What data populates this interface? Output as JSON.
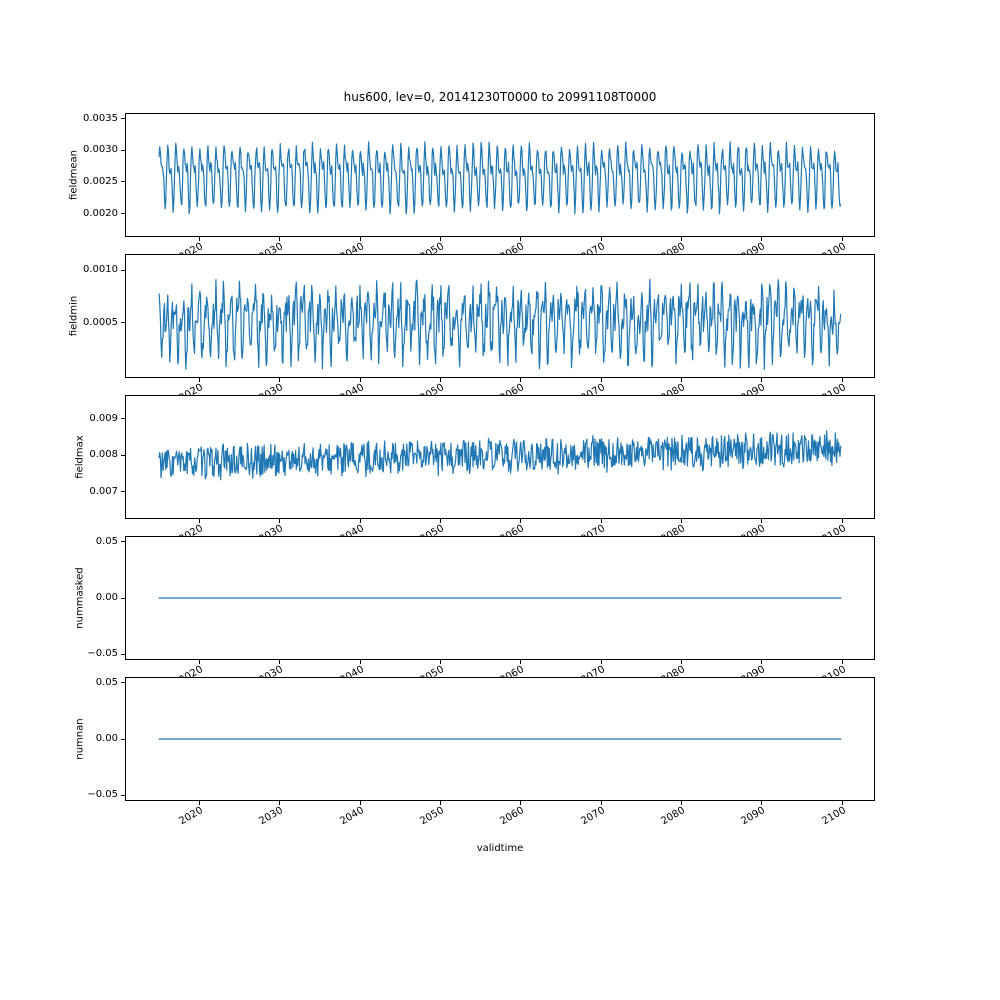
{
  "chart_data": {
    "type": "line",
    "title": "hus600, lev=0, 20141230T0000 to 20991108T0000",
    "xlabel": "validtime",
    "line_color": "#1f77b4",
    "background_color": "#ffffff",
    "axis_color": "#000000",
    "legend": "none",
    "grid": false,
    "x": {
      "lim": [
        2010.75,
        2104.1
      ],
      "ticks": [
        2020,
        2030,
        2040,
        2050,
        2060,
        2070,
        2080,
        2090,
        2100
      ],
      "tick_rotation_deg": 30,
      "data_start": 2014.99,
      "data_end": 2099.86,
      "points_per_year": 12,
      "label": "validtime"
    },
    "panels": [
      {
        "name": "fieldmean",
        "ylabel": "fieldmean",
        "ylim": [
          0.001631,
          0.003589
        ],
        "yticks": [
          0.002,
          0.0025,
          0.003,
          0.0035
        ],
        "ytick_decimals": 4,
        "series": {
          "kind": "seasonal",
          "base": 0.00262,
          "annual_amp": 0.00035,
          "annual_phase": 0.3,
          "semiannual_amp": 0.00022,
          "semiannual_phase": 1.2,
          "noise": 9e-05,
          "trend": 0.0,
          "clamp": [
            0.00172,
            0.0035
          ],
          "seed": 11
        }
      },
      {
        "name": "fieldmin",
        "ylabel": "fieldmin",
        "ylim": [
          -2.35e-05,
          0.0011535
        ],
        "yticks": [
          0.0005,
          0.001
        ],
        "ytick_decimals": 4,
        "series": {
          "kind": "seasonal",
          "base": 0.00052,
          "annual_amp": 0.0002,
          "annual_phase": 2.1,
          "semiannual_amp": 0.00014,
          "semiannual_phase": 0.4,
          "noise": 0.00016,
          "trend": 0.0,
          "clamp": [
            4e-05,
            0.00112
          ],
          "seed": 22
        }
      },
      {
        "name": "fieldmax",
        "ylabel": "fieldmax",
        "ylim": [
          0.006245,
          0.009655
        ],
        "yticks": [
          0.007,
          0.008,
          0.009
        ],
        "ytick_decimals": 3,
        "series": {
          "kind": "seasonal",
          "base": 0.00778,
          "annual_amp": 8e-05,
          "annual_phase": 0.9,
          "semiannual_amp": 5e-05,
          "semiannual_phase": 2.0,
          "noise": 0.00042,
          "trend": 0.0004,
          "clamp": [
            0.0064,
            0.00955
          ],
          "seed": 33
        }
      },
      {
        "name": "nummasked",
        "ylabel": "nummasked",
        "ylim": [
          -0.055,
          0.055
        ],
        "yticks": [
          -0.05,
          0.0,
          0.05
        ],
        "ytick_decimals": 2,
        "series": {
          "kind": "constant",
          "value": 0.0
        }
      },
      {
        "name": "numnan",
        "ylabel": "numnan",
        "ylim": [
          -0.055,
          0.055
        ],
        "yticks": [
          -0.05,
          0.0,
          0.05
        ],
        "ytick_decimals": 2,
        "series": {
          "kind": "constant",
          "value": 0.0
        }
      }
    ]
  }
}
